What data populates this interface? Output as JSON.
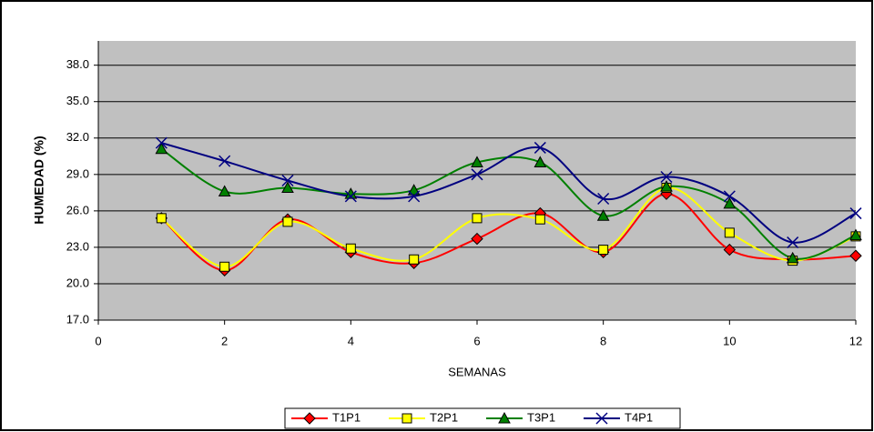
{
  "chart_data": {
    "type": "line",
    "ylabel": "HUMEDAD  (%)",
    "xlabel": "SEMANAS",
    "x": [
      1,
      2,
      3,
      4,
      5,
      6,
      7,
      8,
      9,
      10,
      11,
      12
    ],
    "series": [
      {
        "name": "T1P1",
        "color": "#ff0000",
        "marker": "diamond",
        "values": [
          25.4,
          21.1,
          25.3,
          22.6,
          21.7,
          23.7,
          25.8,
          22.6,
          27.4,
          22.8,
          22.0,
          22.3
        ]
      },
      {
        "name": "T2P1",
        "color": "#ffff00",
        "marker": "square",
        "values": [
          25.4,
          21.4,
          25.1,
          22.9,
          22.0,
          25.4,
          25.3,
          22.8,
          27.9,
          24.2,
          21.9,
          23.9
        ]
      },
      {
        "name": "T3P1",
        "color": "#008000",
        "marker": "triangle",
        "values": [
          31.1,
          27.6,
          27.9,
          27.4,
          27.7,
          30.0,
          30.0,
          25.6,
          28.0,
          26.6,
          22.1,
          24.0
        ]
      },
      {
        "name": "T4P1",
        "color": "#000080",
        "marker": "cross",
        "values": [
          31.6,
          30.1,
          28.5,
          27.2,
          27.2,
          29.0,
          31.2,
          27.0,
          28.8,
          27.2,
          23.4,
          25.8
        ]
      }
    ],
    "xlim": [
      0,
      12
    ],
    "xticks": [
      0,
      2,
      4,
      6,
      8,
      10,
      12
    ],
    "ylim": [
      17,
      40
    ],
    "yticks": [
      {
        "value": 17,
        "label": "17.0"
      },
      {
        "value": 20,
        "label": "20.0"
      },
      {
        "value": 23,
        "label": "23.0"
      },
      {
        "value": 26,
        "label": "26.0"
      },
      {
        "value": 29,
        "label": "29.0"
      },
      {
        "value": 32,
        "label": "32.0"
      },
      {
        "value": 35,
        "label": "35.0"
      },
      {
        "value": 38,
        "label": "38.0"
      }
    ],
    "grid": true,
    "smooth": true,
    "legend": "bottom"
  }
}
